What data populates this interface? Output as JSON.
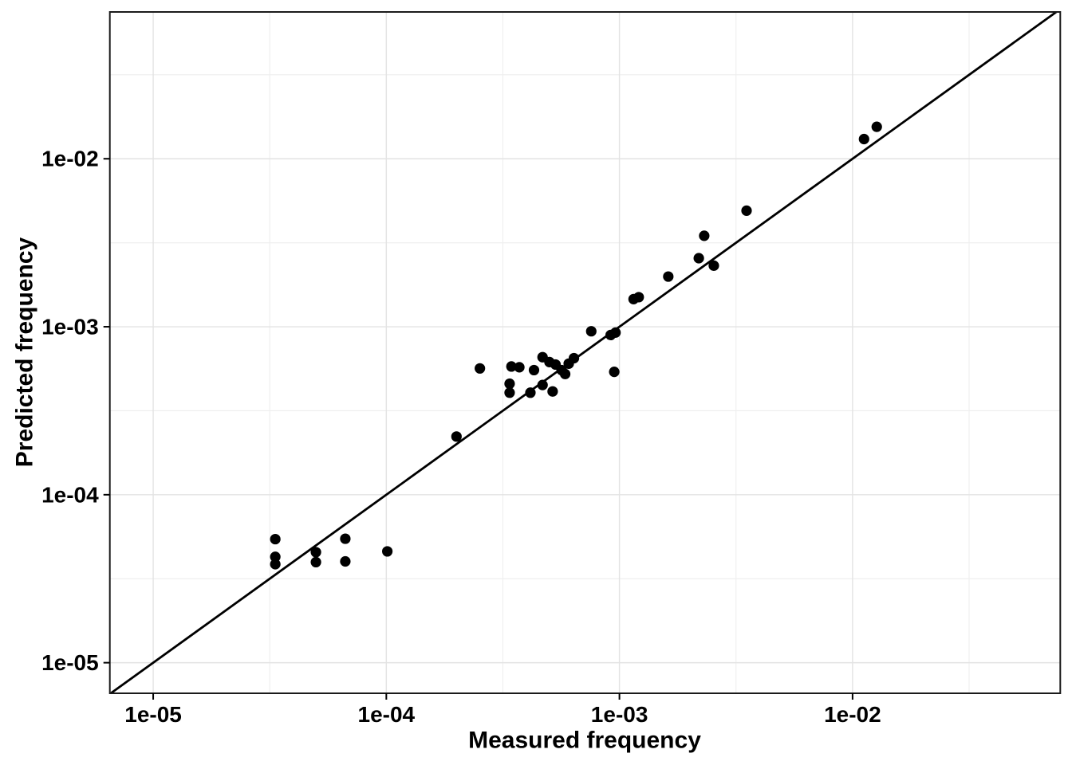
{
  "chart_data": {
    "type": "scatter",
    "title": "",
    "xlabel": "Measured frequency",
    "ylabel": "Predicted frequency",
    "x_scale": "log10",
    "y_scale": "log10",
    "x_log_range": [
      -5.186,
      -1.109
    ],
    "y_log_range": [
      -5.182,
      -1.126
    ],
    "x_ticks": [
      {
        "label": "1e-05",
        "value": 1e-05
      },
      {
        "label": "1e-04",
        "value": 0.0001
      },
      {
        "label": "1e-03",
        "value": 0.001
      },
      {
        "label": "1e-02",
        "value": 0.01
      }
    ],
    "y_ticks": [
      {
        "label": "1e-05",
        "value": 1e-05
      },
      {
        "label": "1e-04",
        "value": 0.0001
      },
      {
        "label": "1e-03",
        "value": 0.001
      },
      {
        "label": "1e-02",
        "value": 0.01
      }
    ],
    "x_minor_log": [
      -4.5,
      -3.5,
      -2.5,
      -1.5
    ],
    "y_minor_log": [
      -4.5,
      -3.5,
      -2.5,
      -1.5
    ],
    "grid": "on",
    "legend": "none",
    "identity_line": true,
    "colors": {
      "point": "#000000",
      "line": "#000000",
      "grid_major": "#e3e3e3",
      "grid_minor": "#eeeeee",
      "panel_border": "#1a1a1a",
      "tick": "#000000",
      "background": "#ffffff"
    },
    "points": [
      {
        "x": 3.34e-05,
        "y": 5.44e-05
      },
      {
        "x": 3.34e-05,
        "y": 4.27e-05
      },
      {
        "x": 3.34e-05,
        "y": 3.86e-05
      },
      {
        "x": 4.99e-05,
        "y": 4.55e-05
      },
      {
        "x": 4.99e-05,
        "y": 3.97e-05
      },
      {
        "x": 6.67e-05,
        "y": 5.47e-05
      },
      {
        "x": 6.67e-05,
        "y": 4.01e-05
      },
      {
        "x": 0.000101,
        "y": 4.6e-05
      },
      {
        "x": 0.0002,
        "y": 0.000222
      },
      {
        "x": 0.000252,
        "y": 0.000565
      },
      {
        "x": 0.000344,
        "y": 0.00058
      },
      {
        "x": 0.000372,
        "y": 0.000574
      },
      {
        "x": 0.000338,
        "y": 0.000458
      },
      {
        "x": 0.000338,
        "y": 0.000405
      },
      {
        "x": 0.00043,
        "y": 0.000552
      },
      {
        "x": 0.000415,
        "y": 0.000405
      },
      {
        "x": 0.000468,
        "y": 0.000659
      },
      {
        "x": 0.000501,
        "y": 0.000616
      },
      {
        "x": 0.000532,
        "y": 0.000596
      },
      {
        "x": 0.000468,
        "y": 0.00045
      },
      {
        "x": 0.000517,
        "y": 0.000412
      },
      {
        "x": 0.000565,
        "y": 0.000552
      },
      {
        "x": 0.000585,
        "y": 0.000523
      },
      {
        "x": 0.000606,
        "y": 0.000603
      },
      {
        "x": 0.000638,
        "y": 0.00065
      },
      {
        "x": 0.000757,
        "y": 0.00094
      },
      {
        "x": 0.000917,
        "y": 0.000893
      },
      {
        "x": 0.000962,
        "y": 0.000923
      },
      {
        "x": 0.00095,
        "y": 0.000539
      },
      {
        "x": 0.00115,
        "y": 0.00146
      },
      {
        "x": 0.00121,
        "y": 0.0015
      },
      {
        "x": 0.00162,
        "y": 0.00199
      },
      {
        "x": 0.00219,
        "y": 0.00256
      },
      {
        "x": 0.00254,
        "y": 0.00231
      },
      {
        "x": 0.00231,
        "y": 0.00348
      },
      {
        "x": 0.00351,
        "y": 0.00491
      },
      {
        "x": 0.0112,
        "y": 0.0131
      },
      {
        "x": 0.0127,
        "y": 0.0155
      }
    ]
  }
}
